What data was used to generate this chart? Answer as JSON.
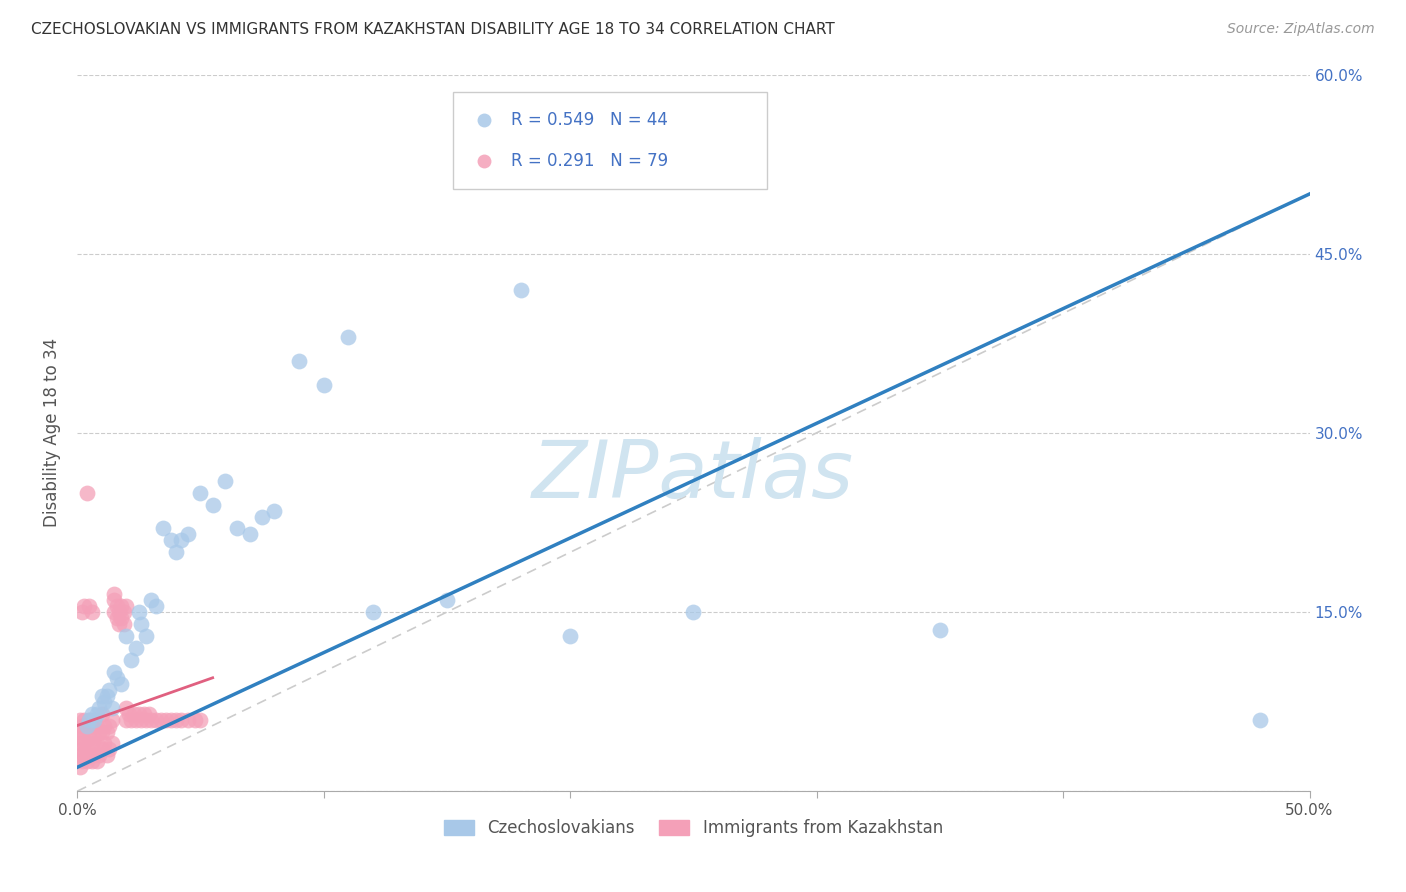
{
  "title": "CZECHOSLOVAKIAN VS IMMIGRANTS FROM KAZAKHSTAN DISABILITY AGE 18 TO 34 CORRELATION CHART",
  "source": "Source: ZipAtlas.com",
  "ylabel": "Disability Age 18 to 34",
  "xlim": [
    0.0,
    0.5
  ],
  "ylim": [
    0.0,
    0.6
  ],
  "xticks": [
    0.0,
    0.1,
    0.2,
    0.3,
    0.4,
    0.5
  ],
  "yticks": [
    0.0,
    0.15,
    0.3,
    0.45,
    0.6
  ],
  "xticklabels": [
    "0.0%",
    "",
    "",
    "",
    "",
    "50.0%"
  ],
  "yticklabels_right": [
    "",
    "15.0%",
    "30.0%",
    "45.0%",
    "60.0%"
  ],
  "blue_R": 0.549,
  "blue_N": 44,
  "pink_R": 0.291,
  "pink_N": 79,
  "blue_color": "#a8c8e8",
  "pink_color": "#f4a0b8",
  "blue_line_color": "#3080c0",
  "pink_line_color": "#e06080",
  "watermark_text": "ZIPatlas",
  "watermark_color": "#d0e4f0",
  "legend_blue_label": "Czechoslovakians",
  "legend_pink_label": "Immigrants from Kazakhstan",
  "blue_scatter_x": [
    0.004,
    0.005,
    0.006,
    0.007,
    0.008,
    0.009,
    0.01,
    0.011,
    0.012,
    0.013,
    0.014,
    0.015,
    0.016,
    0.018,
    0.02,
    0.022,
    0.024,
    0.025,
    0.026,
    0.028,
    0.03,
    0.032,
    0.035,
    0.038,
    0.04,
    0.042,
    0.045,
    0.05,
    0.055,
    0.06,
    0.065,
    0.07,
    0.075,
    0.08,
    0.09,
    0.1,
    0.11,
    0.12,
    0.15,
    0.18,
    0.2,
    0.25,
    0.35,
    0.48
  ],
  "blue_scatter_y": [
    0.055,
    0.06,
    0.065,
    0.06,
    0.065,
    0.07,
    0.08,
    0.075,
    0.08,
    0.085,
    0.07,
    0.1,
    0.095,
    0.09,
    0.13,
    0.11,
    0.12,
    0.15,
    0.14,
    0.13,
    0.16,
    0.155,
    0.22,
    0.21,
    0.2,
    0.21,
    0.215,
    0.25,
    0.24,
    0.26,
    0.22,
    0.215,
    0.23,
    0.235,
    0.36,
    0.34,
    0.38,
    0.15,
    0.16,
    0.42,
    0.13,
    0.15,
    0.135,
    0.06
  ],
  "pink_scatter_x": [
    0.001,
    0.001,
    0.001,
    0.001,
    0.001,
    0.002,
    0.002,
    0.002,
    0.002,
    0.003,
    0.003,
    0.003,
    0.003,
    0.004,
    0.004,
    0.004,
    0.005,
    0.005,
    0.005,
    0.006,
    0.006,
    0.006,
    0.007,
    0.007,
    0.007,
    0.008,
    0.008,
    0.008,
    0.009,
    0.009,
    0.01,
    0.01,
    0.01,
    0.011,
    0.011,
    0.012,
    0.012,
    0.013,
    0.013,
    0.014,
    0.014,
    0.015,
    0.015,
    0.016,
    0.016,
    0.017,
    0.017,
    0.018,
    0.018,
    0.019,
    0.019,
    0.02,
    0.02,
    0.021,
    0.022,
    0.023,
    0.024,
    0.025,
    0.026,
    0.027,
    0.028,
    0.029,
    0.03,
    0.032,
    0.034,
    0.036,
    0.038,
    0.04,
    0.042,
    0.045,
    0.048,
    0.05,
    0.002,
    0.003,
    0.004,
    0.005,
    0.006,
    0.015,
    0.02
  ],
  "pink_scatter_y": [
    0.02,
    0.03,
    0.04,
    0.05,
    0.06,
    0.025,
    0.035,
    0.045,
    0.055,
    0.03,
    0.04,
    0.05,
    0.06,
    0.025,
    0.035,
    0.055,
    0.03,
    0.045,
    0.06,
    0.025,
    0.04,
    0.055,
    0.03,
    0.045,
    0.06,
    0.025,
    0.04,
    0.055,
    0.03,
    0.05,
    0.035,
    0.05,
    0.065,
    0.04,
    0.055,
    0.03,
    0.05,
    0.035,
    0.055,
    0.04,
    0.06,
    0.16,
    0.15,
    0.145,
    0.155,
    0.14,
    0.15,
    0.145,
    0.155,
    0.14,
    0.15,
    0.06,
    0.07,
    0.065,
    0.06,
    0.065,
    0.06,
    0.065,
    0.06,
    0.065,
    0.06,
    0.065,
    0.06,
    0.06,
    0.06,
    0.06,
    0.06,
    0.06,
    0.06,
    0.06,
    0.06,
    0.06,
    0.15,
    0.155,
    0.25,
    0.155,
    0.15,
    0.165,
    0.155
  ],
  "blue_line_x": [
    0.0,
    0.5
  ],
  "blue_line_y": [
    0.02,
    0.5
  ],
  "pink_line_x": [
    0.0,
    0.055
  ],
  "pink_line_y": [
    0.055,
    0.095
  ]
}
